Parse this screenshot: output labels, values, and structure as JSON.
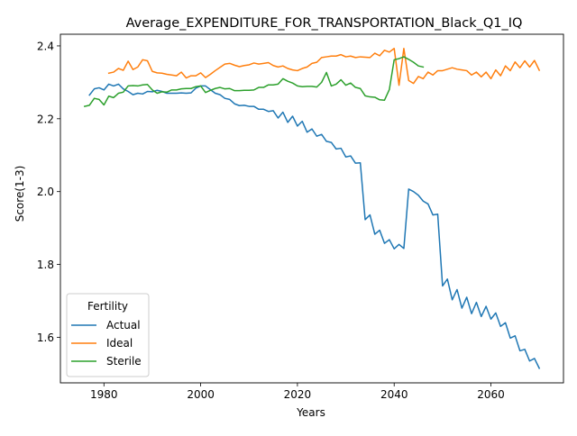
{
  "chart_data": {
    "type": "line",
    "title": "Average_EXPENDITURE_FOR_TRANSPORTATION_Black_Q1_IQ",
    "xlabel": "Years",
    "ylabel": "Score(1-3)",
    "xlim": [
      1971,
      2075
    ],
    "ylim": [
      1.475,
      2.432
    ],
    "xticks": [
      1980,
      2000,
      2020,
      2040,
      2060
    ],
    "yticks": [
      1.6,
      1.8,
      2.0,
      2.2,
      2.4
    ],
    "xtick_labels": [
      "1980",
      "2000",
      "2020",
      "2040",
      "2060"
    ],
    "ytick_labels": [
      "1.6",
      "1.8",
      "2.0",
      "2.2",
      "2.4"
    ],
    "grid": false,
    "legend": {
      "title": "Fertility",
      "placement": "lower-left"
    },
    "series": [
      {
        "name": "Actual",
        "color": "#1f77b4",
        "x": [
          1977,
          1978,
          1979,
          1980,
          1981,
          1982,
          1983,
          1984,
          1985,
          1986,
          1987,
          1988,
          1989,
          1990,
          1991,
          1992,
          1993,
          1994,
          1995,
          1996,
          1997,
          1998,
          1999,
          2000,
          2001,
          2002,
          2003,
          2004,
          2005,
          2006,
          2007,
          2008,
          2009,
          2010,
          2011,
          2012,
          2013,
          2014,
          2015,
          2016,
          2017,
          2018,
          2019,
          2020,
          2021,
          2022,
          2023,
          2024,
          2025,
          2026,
          2027,
          2028,
          2029,
          2030,
          2031,
          2032,
          2033,
          2034,
          2035,
          2036,
          2037,
          2038,
          2039,
          2040,
          2041,
          2042,
          2043,
          2044,
          2045,
          2046,
          2047,
          2048,
          2049,
          2050,
          2051,
          2052,
          2053,
          2054,
          2055,
          2056,
          2057,
          2058,
          2059,
          2060,
          2061,
          2062,
          2063,
          2064,
          2065,
          2066,
          2067,
          2068,
          2069,
          2070
        ],
        "y": [
          2.265,
          2.282,
          2.285,
          2.279,
          2.295,
          2.29,
          2.295,
          2.282,
          2.275,
          2.266,
          2.27,
          2.268,
          2.275,
          2.274,
          2.278,
          2.275,
          2.27,
          2.27,
          2.27,
          2.271,
          2.27,
          2.271,
          2.284,
          2.29,
          2.29,
          2.28,
          2.27,
          2.266,
          2.256,
          2.253,
          2.241,
          2.236,
          2.237,
          2.234,
          2.234,
          2.226,
          2.226,
          2.22,
          2.222,
          2.202,
          2.218,
          2.19,
          2.207,
          2.18,
          2.193,
          2.163,
          2.172,
          2.152,
          2.157,
          2.138,
          2.135,
          2.117,
          2.119,
          2.095,
          2.098,
          2.078,
          2.079,
          1.923,
          1.936,
          1.883,
          1.894,
          1.858,
          1.868,
          1.843,
          1.855,
          1.844,
          2.007,
          2.0,
          1.99,
          1.974,
          1.966,
          1.936,
          1.938,
          1.741,
          1.76,
          1.703,
          1.731,
          1.68,
          1.71,
          1.665,
          1.696,
          1.657,
          1.685,
          1.65,
          1.667,
          1.63,
          1.64,
          1.598,
          1.604,
          1.563,
          1.567,
          1.535,
          1.542,
          1.515
        ]
      },
      {
        "name": "Ideal",
        "color": "#ff7f0e",
        "x": [
          1981,
          1982,
          1983,
          1984,
          1985,
          1986,
          1987,
          1988,
          1989,
          1990,
          1991,
          1992,
          1993,
          1994,
          1995,
          1996,
          1997,
          1998,
          1999,
          2000,
          2001,
          2002,
          2003,
          2004,
          2005,
          2006,
          2007,
          2008,
          2009,
          2010,
          2011,
          2012,
          2013,
          2014,
          2015,
          2016,
          2017,
          2018,
          2019,
          2020,
          2021,
          2022,
          2023,
          2024,
          2025,
          2026,
          2027,
          2028,
          2029,
          2030,
          2031,
          2032,
          2033,
          2034,
          2035,
          2036,
          2037,
          2038,
          2039,
          2040,
          2041,
          2042,
          2043,
          2044,
          2045,
          2046,
          2047,
          2048,
          2049,
          2050,
          2051,
          2052,
          2053,
          2054,
          2055,
          2056,
          2057,
          2058,
          2059,
          2060,
          2061,
          2062,
          2063,
          2064,
          2065,
          2066,
          2067,
          2068,
          2069,
          2070
        ],
        "y": [
          2.325,
          2.328,
          2.338,
          2.333,
          2.358,
          2.335,
          2.342,
          2.362,
          2.359,
          2.33,
          2.326,
          2.325,
          2.322,
          2.32,
          2.318,
          2.328,
          2.312,
          2.318,
          2.318,
          2.326,
          2.313,
          2.322,
          2.332,
          2.341,
          2.35,
          2.352,
          2.347,
          2.343,
          2.346,
          2.348,
          2.353,
          2.35,
          2.352,
          2.354,
          2.346,
          2.342,
          2.345,
          2.338,
          2.334,
          2.332,
          2.338,
          2.342,
          2.352,
          2.355,
          2.368,
          2.37,
          2.372,
          2.372,
          2.376,
          2.37,
          2.372,
          2.368,
          2.37,
          2.369,
          2.368,
          2.38,
          2.373,
          2.388,
          2.383,
          2.393,
          2.292,
          2.393,
          2.305,
          2.297,
          2.316,
          2.31,
          2.328,
          2.32,
          2.332,
          2.332,
          2.336,
          2.34,
          2.336,
          2.334,
          2.332,
          2.32,
          2.328,
          2.315,
          2.328,
          2.31,
          2.334,
          2.318,
          2.345,
          2.332,
          2.356,
          2.34,
          2.359,
          2.342,
          2.36,
          2.333
        ]
      },
      {
        "name": "Sterile",
        "color": "#2ca02c",
        "x": [
          1976,
          1977,
          1978,
          1979,
          1980,
          1981,
          1982,
          1983,
          1984,
          1985,
          1986,
          1987,
          1988,
          1989,
          1990,
          1991,
          1992,
          1993,
          1994,
          1995,
          1996,
          1997,
          1998,
          1999,
          2000,
          2001,
          2002,
          2003,
          2004,
          2005,
          2006,
          2007,
          2008,
          2009,
          2010,
          2011,
          2012,
          2013,
          2014,
          2015,
          2016,
          2017,
          2018,
          2019,
          2020,
          2021,
          2022,
          2023,
          2024,
          2025,
          2026,
          2027,
          2028,
          2029,
          2030,
          2031,
          2032,
          2033,
          2034,
          2035,
          2036,
          2037,
          2038,
          2039,
          2040,
          2041,
          2042,
          2043,
          2044,
          2045,
          2046
        ],
        "y": [
          2.234,
          2.237,
          2.256,
          2.253,
          2.238,
          2.262,
          2.258,
          2.27,
          2.273,
          2.29,
          2.291,
          2.29,
          2.293,
          2.294,
          2.279,
          2.27,
          2.274,
          2.273,
          2.279,
          2.279,
          2.282,
          2.283,
          2.283,
          2.288,
          2.29,
          2.272,
          2.278,
          2.283,
          2.286,
          2.282,
          2.283,
          2.277,
          2.277,
          2.278,
          2.278,
          2.279,
          2.286,
          2.286,
          2.293,
          2.293,
          2.295,
          2.31,
          2.303,
          2.298,
          2.29,
          2.288,
          2.289,
          2.289,
          2.287,
          2.3,
          2.327,
          2.29,
          2.295,
          2.307,
          2.292,
          2.298,
          2.286,
          2.283,
          2.263,
          2.26,
          2.259,
          2.252,
          2.251,
          2.28,
          2.362,
          2.365,
          2.37,
          2.363,
          2.355,
          2.345,
          2.342
        ]
      }
    ]
  }
}
